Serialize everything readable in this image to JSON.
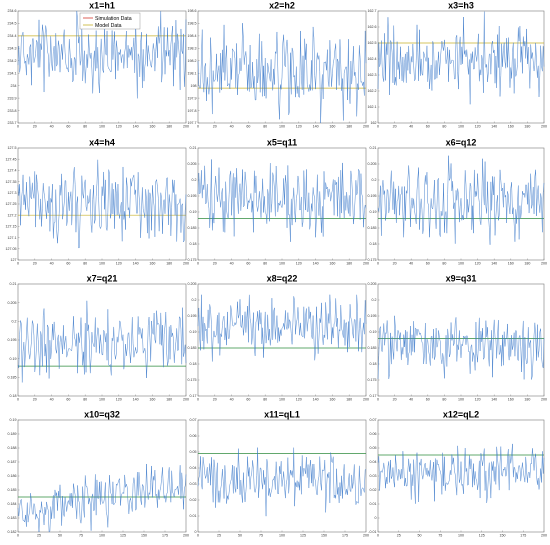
{
  "colors": {
    "simulation": "#3a78c9",
    "model_h": "#c7b02a",
    "model_q": "#2e8b3d",
    "red": "#d33a2e",
    "axis": "#888888"
  },
  "legend": {
    "simulation_label": "Simulation Data",
    "model_label": "Model Data"
  },
  "chart_data": [
    {
      "type": "line",
      "title": "x1=h1",
      "xlim": [
        0,
        200
      ],
      "ylim": [
        233.7,
        234.6
      ],
      "xticks": [
        0,
        20,
        40,
        60,
        80,
        100,
        120,
        140,
        160,
        180,
        200
      ],
      "yticks": [
        233.7,
        233.8,
        233.9,
        234,
        234.1,
        234.2,
        234.3,
        234.4,
        234.5,
        234.6
      ],
      "series": [
        {
          "name": "Simulation Data",
          "mean": 234.25,
          "spread": 0.14,
          "trend": 0
        },
        {
          "name": "Model Data",
          "value": 234.4
        }
      ],
      "grid": false,
      "legend": "top-right"
    },
    {
      "type": "line",
      "title": "x2=h2",
      "xlim": [
        0,
        200
      ],
      "ylim": [
        197.7,
        198.6
      ],
      "xticks": [
        0,
        20,
        40,
        60,
        80,
        100,
        120,
        140,
        160,
        180,
        200
      ],
      "yticks": [
        197.7,
        197.8,
        197.9,
        198,
        198.1,
        198.2,
        198.3,
        198.4,
        198.5,
        198.6
      ],
      "series": [
        {
          "name": "Simulation Data",
          "mean": 198.1,
          "spread": 0.16,
          "trend": 0
        },
        {
          "name": "Model Data",
          "value": 197.98
        }
      ],
      "grid": false
    },
    {
      "type": "line",
      "title": "x3=h3",
      "xlim": [
        0,
        200
      ],
      "ylim": [
        162,
        162.7
      ],
      "xticks": [
        0,
        20,
        40,
        60,
        80,
        100,
        120,
        140,
        160,
        180,
        200
      ],
      "yticks": [
        162,
        162.1,
        162.2,
        162.3,
        162.4,
        162.5,
        162.6,
        162.7
      ],
      "series": [
        {
          "name": "Simulation Data",
          "mean": 162.4,
          "spread": 0.11,
          "trend": 0
        },
        {
          "name": "Model Data",
          "value": 162.5
        }
      ],
      "grid": false
    },
    {
      "type": "line",
      "title": "x4=h4",
      "xlim": [
        0,
        200
      ],
      "ylim": [
        127,
        127.5
      ],
      "xticks": [
        0,
        20,
        40,
        60,
        80,
        100,
        120,
        140,
        160,
        180,
        200
      ],
      "yticks": [
        127,
        127.05,
        127.1,
        127.15,
        127.2,
        127.25,
        127.3,
        127.35,
        127.4,
        127.45,
        127.5
      ],
      "series": [
        {
          "name": "Simulation Data",
          "mean": 127.25,
          "spread": 0.08,
          "trend": 0
        },
        {
          "name": "Model Data",
          "value": 127.2
        }
      ],
      "grid": false
    },
    {
      "type": "line",
      "title": "x5=q11",
      "xlim": [
        0,
        200
      ],
      "ylim": [
        0.175,
        0.21
      ],
      "xticks": [
        0,
        20,
        40,
        60,
        80,
        100,
        120,
        140,
        160,
        180,
        200
      ],
      "yticks": [
        0.175,
        0.18,
        0.185,
        0.19,
        0.195,
        0.2,
        0.205,
        0.21
      ],
      "series": [
        {
          "name": "Simulation Data",
          "mean": 0.194,
          "spread": 0.0055,
          "trend": 0
        },
        {
          "name": "Model Data",
          "value": 0.188
        }
      ],
      "grid": false
    },
    {
      "type": "line",
      "title": "x6=q12",
      "xlim": [
        0,
        200
      ],
      "ylim": [
        0.175,
        0.21
      ],
      "xticks": [
        0,
        20,
        40,
        60,
        80,
        100,
        120,
        140,
        160,
        180,
        200
      ],
      "yticks": [
        0.175,
        0.18,
        0.185,
        0.19,
        0.195,
        0.2,
        0.205,
        0.21
      ],
      "series": [
        {
          "name": "Simulation Data",
          "mean": 0.194,
          "spread": 0.0055,
          "trend": 0
        },
        {
          "name": "Model Data",
          "value": 0.188
        }
      ],
      "grid": false
    },
    {
      "type": "line",
      "title": "x7=q21",
      "xlim": [
        0,
        200
      ],
      "ylim": [
        0.18,
        0.21
      ],
      "xticks": [
        0,
        20,
        40,
        60,
        80,
        100,
        120,
        140,
        160,
        180,
        200
      ],
      "yticks": [
        0.18,
        0.185,
        0.19,
        0.195,
        0.2,
        0.205,
        0.21
      ],
      "series": [
        {
          "name": "Simulation Data",
          "mean": 0.194,
          "spread": 0.0045,
          "trend": 0
        },
        {
          "name": "Model Data",
          "value": 0.188
        }
      ],
      "grid": false
    },
    {
      "type": "line",
      "title": "x8=q22",
      "xlim": [
        0,
        200
      ],
      "ylim": [
        0.17,
        0.205
      ],
      "xticks": [
        0,
        20,
        40,
        60,
        80,
        100,
        120,
        140,
        160,
        180,
        200
      ],
      "yticks": [
        0.17,
        0.175,
        0.18,
        0.185,
        0.19,
        0.195,
        0.2,
        0.205
      ],
      "series": [
        {
          "name": "Simulation Data",
          "mean": 0.192,
          "spread": 0.0045,
          "trend": 0
        },
        {
          "name": "Model Data",
          "value": 0.185
        }
      ],
      "grid": false
    },
    {
      "type": "line",
      "title": "x9=q31",
      "xlim": [
        0,
        200
      ],
      "ylim": [
        0.17,
        0.205
      ],
      "xticks": [
        0,
        20,
        40,
        60,
        80,
        100,
        120,
        140,
        160,
        180,
        200
      ],
      "yticks": [
        0.17,
        0.175,
        0.18,
        0.185,
        0.19,
        0.195,
        0.2,
        0.205
      ],
      "series": [
        {
          "name": "Simulation Data",
          "mean": 0.186,
          "spread": 0.0045,
          "trend": 0
        },
        {
          "name": "Model Data",
          "value": 0.188
        }
      ],
      "grid": false
    },
    {
      "type": "line",
      "title": "x10=q32",
      "xlim": [
        0,
        200
      ],
      "ylim": [
        0.182,
        0.19
      ],
      "xticks": [
        0,
        25,
        50,
        75,
        100,
        125,
        150,
        175,
        200
      ],
      "yticks": [
        0.182,
        0.183,
        0.184,
        0.185,
        0.186,
        0.187,
        0.188,
        0.189,
        0.19
      ],
      "series": [
        {
          "name": "Simulation Data",
          "mean": 0.1845,
          "spread": 0.0008,
          "trend": 0.0022
        },
        {
          "name": "Model Data",
          "value": 0.1845
        }
      ],
      "grid": false
    },
    {
      "type": "line",
      "title": "x11=qL1",
      "xlim": [
        0,
        200
      ],
      "ylim": [
        0,
        0.07
      ],
      "xticks": [
        0,
        25,
        50,
        75,
        100,
        125,
        150,
        175,
        200
      ],
      "yticks": [
        0,
        0.01,
        0.02,
        0.03,
        0.04,
        0.05,
        0.06,
        0.07
      ],
      "series": [
        {
          "name": "Simulation Data",
          "mean": 0.032,
          "spread": 0.009,
          "trend": 0
        },
        {
          "name": "Model Data",
          "value": 0.049
        }
      ],
      "grid": false
    },
    {
      "type": "line",
      "title": "x12=qL2",
      "xlim": [
        0,
        200
      ],
      "ylim": [
        -0.01,
        0.07
      ],
      "xticks": [
        0,
        25,
        50,
        75,
        100,
        125,
        150,
        175,
        200
      ],
      "yticks": [
        -0.01,
        0,
        0.01,
        0.02,
        0.03,
        0.04,
        0.05,
        0.06,
        0.07
      ],
      "series": [
        {
          "name": "Simulation Data",
          "mean": 0.032,
          "spread": 0.009,
          "trend": 0
        },
        {
          "name": "Model Data",
          "value": 0.045
        }
      ],
      "grid": false
    }
  ]
}
